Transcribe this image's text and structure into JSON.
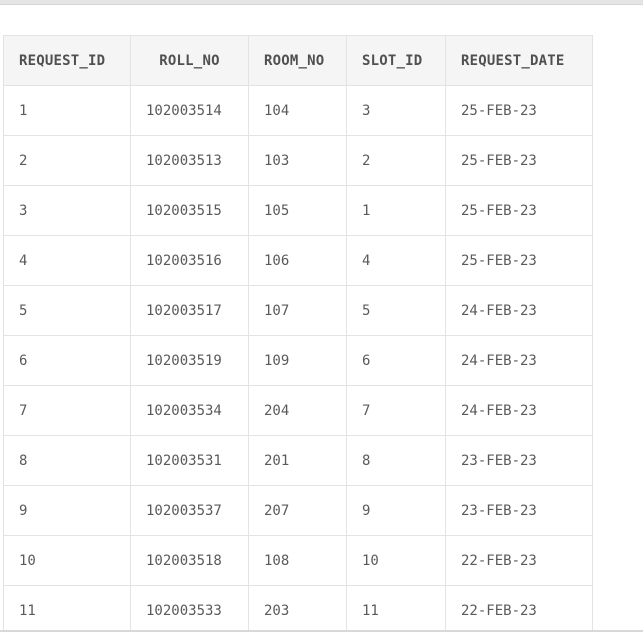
{
  "table": {
    "columns": [
      "REQUEST_ID",
      "ROLL_NO",
      "ROOM_NO",
      "SLOT_ID",
      "REQUEST_DATE"
    ],
    "rows": [
      [
        "1",
        "102003514",
        "104",
        "3",
        "25-FEB-23"
      ],
      [
        "2",
        "102003513",
        "103",
        "2",
        "25-FEB-23"
      ],
      [
        "3",
        "102003515",
        "105",
        "1",
        "25-FEB-23"
      ],
      [
        "4",
        "102003516",
        "106",
        "4",
        "25-FEB-23"
      ],
      [
        "5",
        "102003517",
        "107",
        "5",
        "24-FEB-23"
      ],
      [
        "6",
        "102003519",
        "109",
        "6",
        "24-FEB-23"
      ],
      [
        "7",
        "102003534",
        "204",
        "7",
        "24-FEB-23"
      ],
      [
        "8",
        "102003531",
        "201",
        "8",
        "23-FEB-23"
      ],
      [
        "9",
        "102003537",
        "207",
        "9",
        "23-FEB-23"
      ],
      [
        "10",
        "102003518",
        "108",
        "10",
        "22-FEB-23"
      ],
      [
        "11",
        "102003533",
        "203",
        "11",
        "22-FEB-23"
      ]
    ]
  },
  "colors": {
    "header_bg": "#f5f5f5",
    "border": "#e3e3e3",
    "text": "#5a5a5a"
  }
}
